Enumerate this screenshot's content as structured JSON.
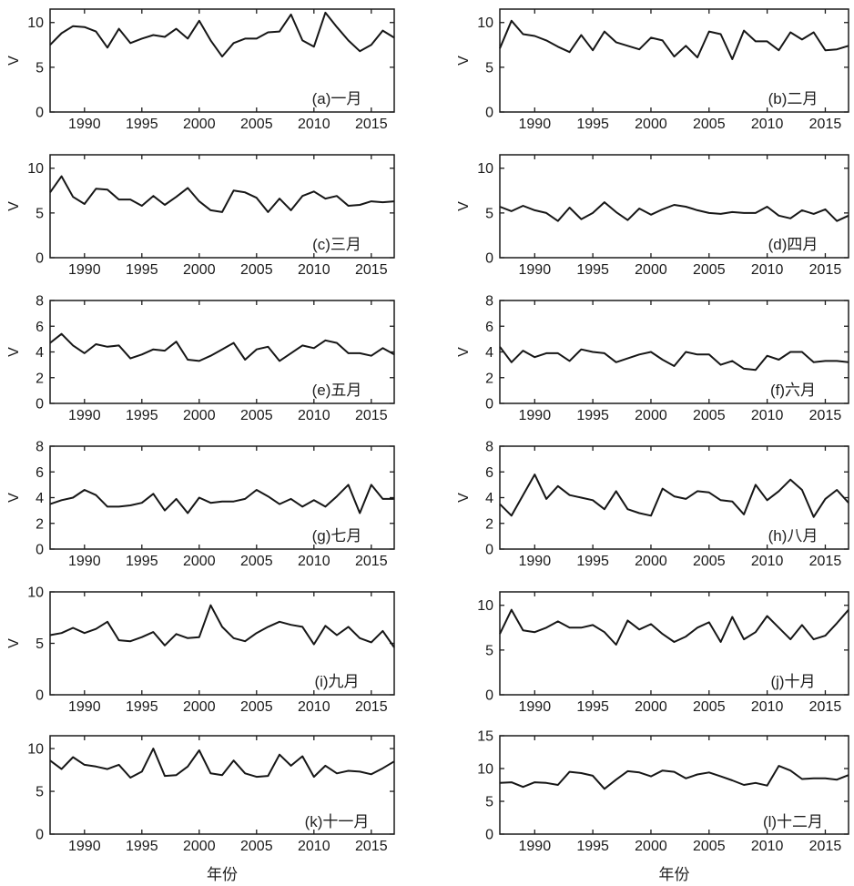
{
  "figure": {
    "xlabel": "年份",
    "ylabel": "V",
    "line_color": "#161616",
    "axis_color": "#1c1c1c",
    "xticks": [
      1990,
      1995,
      2000,
      2005,
      2010,
      2015
    ]
  },
  "chart_data": [
    {
      "type": "line",
      "id": "a",
      "label": "(a)一月",
      "xlabel": "",
      "ylabel": "V",
      "show_ylabel": true,
      "show_xlabel": false,
      "xlim": [
        1987,
        2017
      ],
      "x_step": 1,
      "ylim": [
        0,
        11.5
      ],
      "yticks": [
        0,
        5,
        10
      ],
      "values": [
        7.5,
        8.8,
        9.6,
        9.5,
        9.0,
        7.2,
        9.3,
        7.7,
        8.2,
        8.6,
        8.4,
        9.3,
        8.2,
        10.2,
        8.0,
        6.2,
        7.7,
        8.2,
        8.2,
        8.9,
        9.0,
        10.9,
        8.0,
        7.3,
        11.1,
        9.5,
        8.0,
        6.8,
        7.5,
        9.1,
        8.3
      ]
    },
    {
      "type": "line",
      "id": "b",
      "label": "(b)二月",
      "xlabel": "",
      "ylabel": "V",
      "show_ylabel": true,
      "show_xlabel": false,
      "xlim": [
        1987,
        2017
      ],
      "x_step": 1,
      "ylim": [
        0,
        11.5
      ],
      "yticks": [
        0,
        5,
        10
      ],
      "values": [
        7.1,
        10.2,
        8.7,
        8.5,
        8.0,
        7.3,
        6.7,
        8.6,
        6.9,
        9.0,
        7.8,
        7.4,
        7.0,
        8.3,
        8.0,
        6.2,
        7.4,
        6.1,
        9.0,
        8.7,
        5.9,
        9.1,
        7.9,
        7.9,
        6.9,
        8.9,
        8.1,
        8.9,
        6.9,
        7.0,
        7.4
      ]
    },
    {
      "type": "line",
      "id": "c",
      "label": "(c)三月",
      "xlabel": "",
      "ylabel": "V",
      "show_ylabel": true,
      "show_xlabel": false,
      "xlim": [
        1987,
        2017
      ],
      "x_step": 1,
      "ylim": [
        0,
        11.5
      ],
      "yticks": [
        0,
        5,
        10
      ],
      "values": [
        7.3,
        9.1,
        6.8,
        6.0,
        7.7,
        7.6,
        6.5,
        6.5,
        5.8,
        6.9,
        5.9,
        6.8,
        7.8,
        6.3,
        5.3,
        5.1,
        7.5,
        7.3,
        6.7,
        5.1,
        6.6,
        5.3,
        6.9,
        7.4,
        6.6,
        6.9,
        5.8,
        5.9,
        6.3,
        6.2,
        6.3
      ]
    },
    {
      "type": "line",
      "id": "d",
      "label": "(d)四月",
      "xlabel": "",
      "ylabel": "V",
      "show_ylabel": true,
      "show_xlabel": false,
      "xlim": [
        1987,
        2017
      ],
      "x_step": 1,
      "ylim": [
        0,
        11.5
      ],
      "yticks": [
        0,
        5,
        10
      ],
      "values": [
        5.7,
        5.2,
        5.8,
        5.3,
        5.0,
        4.1,
        5.6,
        4.3,
        5.0,
        6.2,
        5.1,
        4.2,
        5.5,
        4.8,
        5.4,
        5.9,
        5.7,
        5.3,
        5.0,
        4.9,
        5.1,
        5.0,
        5.0,
        5.7,
        4.7,
        4.4,
        5.3,
        4.9,
        5.4,
        4.1,
        4.7
      ]
    },
    {
      "type": "line",
      "id": "e",
      "label": "(e)五月",
      "xlabel": "",
      "ylabel": "V",
      "show_ylabel": true,
      "show_xlabel": false,
      "xlim": [
        1987,
        2017
      ],
      "x_step": 1,
      "ylim": [
        0,
        8
      ],
      "yticks": [
        0,
        2,
        4,
        6,
        8
      ],
      "values": [
        4.7,
        5.4,
        4.5,
        3.9,
        4.6,
        4.4,
        4.5,
        3.5,
        3.8,
        4.2,
        4.1,
        4.8,
        3.4,
        3.3,
        3.7,
        4.2,
        4.7,
        3.4,
        4.2,
        4.4,
        3.3,
        3.9,
        4.5,
        4.3,
        4.9,
        4.7,
        3.9,
        3.9,
        3.7,
        4.3,
        3.8
      ]
    },
    {
      "type": "line",
      "id": "f",
      "label": "(f)六月",
      "xlabel": "",
      "ylabel": "V",
      "show_ylabel": true,
      "show_xlabel": false,
      "xlim": [
        1987,
        2017
      ],
      "x_step": 1,
      "ylim": [
        0,
        8
      ],
      "yticks": [
        0,
        2,
        4,
        6,
        8
      ],
      "values": [
        4.4,
        3.2,
        4.1,
        3.6,
        3.9,
        3.9,
        3.3,
        4.2,
        4.0,
        3.9,
        3.2,
        3.5,
        3.8,
        4.0,
        3.4,
        2.9,
        4.0,
        3.8,
        3.8,
        3.0,
        3.3,
        2.7,
        2.6,
        3.7,
        3.4,
        4.0,
        4.0,
        3.2,
        3.3,
        3.3,
        3.2
      ]
    },
    {
      "type": "line",
      "id": "g",
      "label": "(g)七月",
      "xlabel": "",
      "ylabel": "V",
      "show_ylabel": true,
      "show_xlabel": false,
      "xlim": [
        1987,
        2017
      ],
      "x_step": 1,
      "ylim": [
        0,
        8
      ],
      "yticks": [
        0,
        2,
        4,
        6,
        8
      ],
      "values": [
        3.5,
        3.8,
        4.0,
        4.6,
        4.2,
        3.3,
        3.3,
        3.4,
        3.6,
        4.3,
        3.0,
        3.9,
        2.8,
        4.0,
        3.6,
        3.7,
        3.7,
        3.9,
        4.6,
        4.1,
        3.5,
        3.9,
        3.3,
        3.8,
        3.3,
        4.1,
        5.0,
        2.8,
        5.0,
        3.9,
        3.9
      ]
    },
    {
      "type": "line",
      "id": "h",
      "label": "(h)八月",
      "xlabel": "",
      "ylabel": "V",
      "show_ylabel": true,
      "show_xlabel": false,
      "xlim": [
        1987,
        2017
      ],
      "x_step": 1,
      "ylim": [
        0,
        8
      ],
      "yticks": [
        0,
        2,
        4,
        6,
        8
      ],
      "values": [
        3.5,
        2.6,
        4.2,
        5.8,
        3.9,
        4.9,
        4.2,
        4.0,
        3.8,
        3.1,
        4.5,
        3.1,
        2.8,
        2.6,
        4.7,
        4.1,
        3.9,
        4.5,
        4.4,
        3.8,
        3.7,
        2.7,
        5.0,
        3.8,
        4.5,
        5.4,
        4.6,
        2.5,
        3.9,
        4.6,
        3.6
      ]
    },
    {
      "type": "line",
      "id": "i",
      "label": "(i)九月",
      "xlabel": "",
      "ylabel": "V",
      "show_ylabel": true,
      "show_xlabel": false,
      "xlim": [
        1987,
        2017
      ],
      "x_step": 1,
      "ylim": [
        0,
        10
      ],
      "yticks": [
        0,
        5,
        10
      ],
      "values": [
        5.8,
        6.0,
        6.5,
        6.0,
        6.4,
        7.1,
        5.3,
        5.2,
        5.6,
        6.1,
        4.8,
        5.9,
        5.5,
        5.6,
        8.7,
        6.6,
        5.5,
        5.2,
        6.0,
        6.6,
        7.1,
        6.8,
        6.6,
        4.9,
        6.7,
        5.8,
        6.6,
        5.5,
        5.1,
        6.2,
        4.6
      ]
    },
    {
      "type": "line",
      "id": "j",
      "label": "(j)十月",
      "xlabel": "",
      "ylabel": "",
      "show_ylabel": false,
      "show_xlabel": false,
      "xlim": [
        1987,
        2017
      ],
      "x_step": 1,
      "ylim": [
        0,
        11.5
      ],
      "yticks": [
        0,
        5,
        10
      ],
      "values": [
        6.8,
        9.5,
        7.2,
        7.0,
        7.5,
        8.2,
        7.5,
        7.5,
        7.8,
        7.0,
        5.6,
        8.3,
        7.3,
        7.9,
        6.8,
        5.9,
        6.5,
        7.5,
        8.1,
        5.9,
        8.7,
        6.2,
        7.0,
        8.8,
        7.5,
        6.2,
        7.8,
        6.2,
        6.6,
        8.0,
        9.5
      ]
    },
    {
      "type": "line",
      "id": "k",
      "label": "(k)十一月",
      "xlabel": "年份",
      "ylabel": "",
      "show_ylabel": false,
      "show_xlabel": true,
      "xlim": [
        1987,
        2017
      ],
      "x_step": 1,
      "ylim": [
        0,
        11.5
      ],
      "yticks": [
        0,
        5,
        10
      ],
      "values": [
        8.6,
        7.6,
        9.0,
        8.1,
        7.9,
        7.6,
        8.1,
        6.6,
        7.3,
        10.0,
        6.8,
        6.9,
        7.9,
        9.8,
        7.1,
        6.9,
        8.6,
        7.1,
        6.7,
        6.8,
        9.3,
        8.0,
        9.1,
        6.7,
        8.0,
        7.1,
        7.4,
        7.3,
        7.0,
        7.7,
        8.5
      ]
    },
    {
      "type": "line",
      "id": "l",
      "label": "(l)十二月",
      "xlabel": "年份",
      "ylabel": "",
      "show_ylabel": false,
      "show_xlabel": true,
      "xlim": [
        1987,
        2017
      ],
      "x_step": 1,
      "ylim": [
        0,
        15
      ],
      "yticks": [
        0,
        5,
        10,
        15
      ],
      "values": [
        7.8,
        7.9,
        7.2,
        7.9,
        7.8,
        7.5,
        9.5,
        9.3,
        8.9,
        6.9,
        8.3,
        9.6,
        9.4,
        8.8,
        9.7,
        9.5,
        8.5,
        9.1,
        9.4,
        8.8,
        8.2,
        7.5,
        7.8,
        7.4,
        10.4,
        9.7,
        8.4,
        8.5,
        8.5,
        8.3,
        9.0
      ]
    }
  ]
}
